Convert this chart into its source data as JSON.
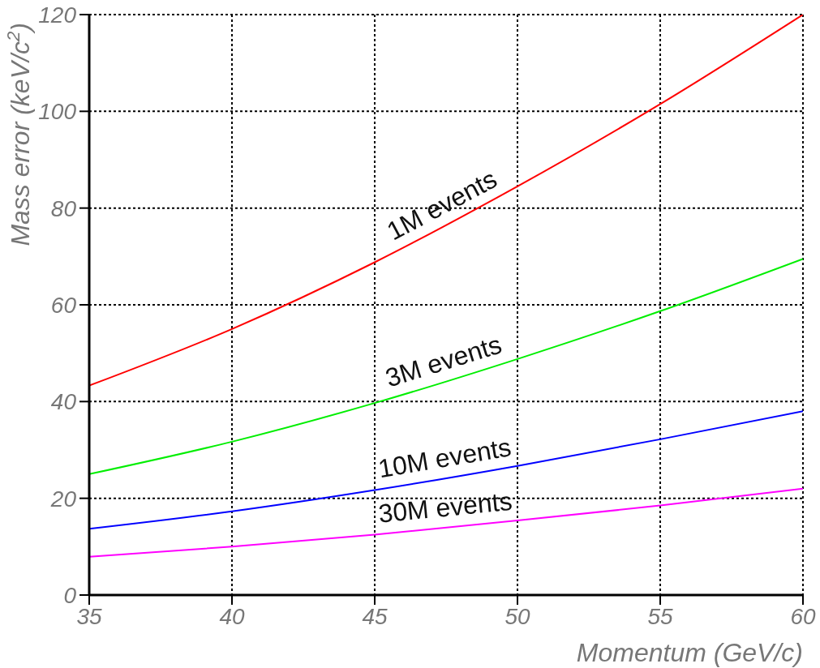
{
  "chart_data": {
    "type": "line",
    "xlabel": "Momentum (GeV/c)",
    "ylabel": "Mass error (keV/c$^{2}$)",
    "x": [
      35,
      40,
      45,
      50,
      55,
      60
    ],
    "series": [
      {
        "name": "1M events",
        "color": "#ff0000",
        "values": [
          43.3,
          55,
          68.8,
          84.5,
          101.5,
          120
        ]
      },
      {
        "name": "3M events",
        "color": "#00ee00",
        "values": [
          25,
          31.7,
          39.7,
          48.8,
          58.7,
          69.5
        ]
      },
      {
        "name": "10M events",
        "color": "#0000ff",
        "values": [
          13.7,
          17.3,
          21.7,
          26.7,
          32.2,
          38
        ]
      },
      {
        "name": "30M events",
        "color": "#ff00ff",
        "values": [
          7.9,
          10,
          12.5,
          15.4,
          18.5,
          22
        ]
      }
    ],
    "xlim": [
      35,
      60
    ],
    "xticks": [
      35,
      40,
      45,
      50,
      55,
      60
    ],
    "ylim": [
      0,
      120
    ],
    "yticks": [
      0,
      20,
      40,
      60,
      80,
      100,
      120
    ],
    "grid": true,
    "marker": "none",
    "line_style": "solid"
  }
}
